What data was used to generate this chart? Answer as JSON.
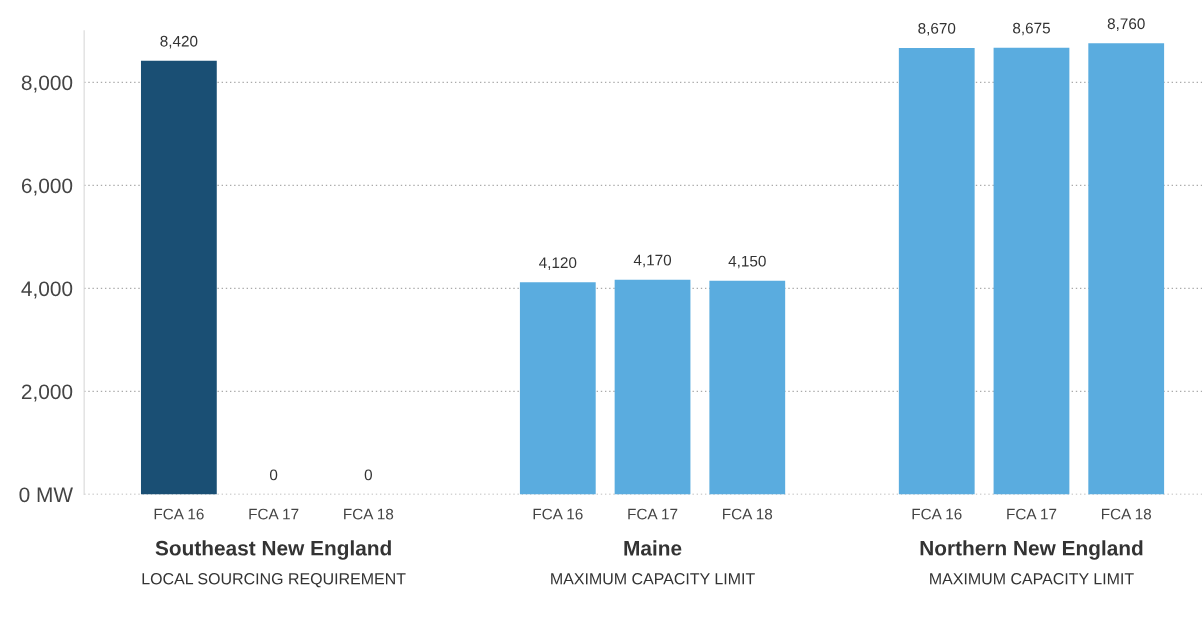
{
  "chart_data": {
    "type": "bar",
    "categories": [
      "FCA 16",
      "FCA 17",
      "FCA 18",
      null,
      "FCA 16",
      "FCA 17",
      "FCA 18",
      null,
      "FCA 16",
      "FCA 17",
      "FCA 18"
    ],
    "values": [
      8420,
      0,
      0,
      null,
      4120,
      4170,
      4150,
      null,
      8670,
      8675,
      8760
    ],
    "colors": [
      "#1a4f74",
      "#5aacdf",
      "#5aacdf",
      null,
      "#5aacdf",
      "#5aacdf",
      "#5aacdf",
      null,
      "#5aacdf",
      "#5aacdf",
      "#5aacdf"
    ],
    "value_labels": [
      "8,420",
      "0",
      "0",
      null,
      "4,120",
      "4,170",
      "4,150",
      null,
      "8,670",
      "8,675",
      "8,760"
    ],
    "ylim": [
      0,
      9000
    ],
    "yticks": [
      {
        "value": 0,
        "label": "0 MW"
      },
      {
        "value": 2000,
        "label": "2,000"
      },
      {
        "value": 4000,
        "label": "4,000"
      },
      {
        "value": 6000,
        "label": "6,000"
      },
      {
        "value": 8000,
        "label": "8,000"
      }
    ],
    "grid": "y",
    "annotations": [
      "Southeast New England",
      "LOCAL SOURCING REQUIREMENT",
      "Maine",
      "MAXIMUM CAPACITY LIMIT",
      "Northern New England",
      "MAXIMUM CAPACITY LIMIT"
    ]
  }
}
